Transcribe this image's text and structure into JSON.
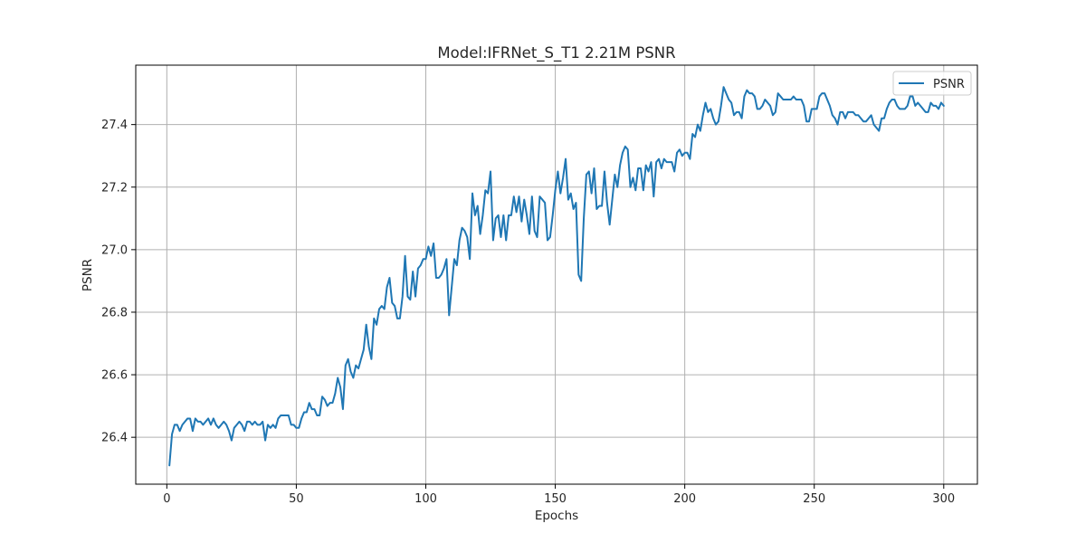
{
  "chart_data": {
    "type": "line",
    "title": "Model:IFRNet_S_T1 2.21M PSNR",
    "xlabel": "Epochs",
    "ylabel": "PSNR",
    "xlim": [
      -12,
      313
    ],
    "ylim": [
      26.25,
      27.59
    ],
    "xticks": [
      0,
      50,
      100,
      150,
      200,
      250,
      300
    ],
    "yticks": [
      26.4,
      26.6,
      26.8,
      27.0,
      27.2,
      27.4
    ],
    "xtick_labels": [
      "0",
      "50",
      "100",
      "150",
      "200",
      "250",
      "300"
    ],
    "ytick_labels": [
      "26.4",
      "26.6",
      "26.8",
      "27.0",
      "27.2",
      "27.4"
    ],
    "grid": true,
    "legend_position": "upper right",
    "colors": {
      "series": "#1f77b4",
      "grid": "#b0b0b0",
      "frame": "#000000"
    },
    "series": [
      {
        "name": "PSNR",
        "x_start": 1,
        "x_step": 1,
        "values": [
          26.31,
          26.41,
          26.44,
          26.44,
          26.42,
          26.44,
          26.45,
          26.46,
          26.46,
          26.42,
          26.46,
          26.45,
          26.45,
          26.44,
          26.45,
          26.46,
          26.44,
          26.46,
          26.44,
          26.43,
          26.44,
          26.45,
          26.44,
          26.42,
          26.39,
          26.43,
          26.44,
          26.45,
          26.44,
          26.42,
          26.45,
          26.45,
          26.44,
          26.45,
          26.44,
          26.44,
          26.45,
          26.39,
          26.44,
          26.43,
          26.44,
          26.43,
          26.46,
          26.47,
          26.47,
          26.47,
          26.47,
          26.44,
          26.44,
          26.43,
          26.43,
          26.46,
          26.48,
          26.48,
          26.51,
          26.49,
          26.49,
          26.47,
          26.47,
          26.53,
          26.52,
          26.5,
          26.51,
          26.51,
          26.54,
          26.59,
          26.56,
          26.49,
          26.63,
          26.65,
          26.61,
          26.59,
          26.63,
          26.62,
          26.65,
          26.68,
          26.76,
          26.69,
          26.65,
          26.78,
          26.76,
          26.81,
          26.82,
          26.81,
          26.88,
          26.91,
          26.83,
          26.82,
          26.78,
          26.78,
          26.85,
          26.98,
          26.85,
          26.84,
          26.93,
          26.85,
          26.94,
          26.95,
          26.97,
          26.97,
          27.01,
          26.98,
          27.02,
          26.91,
          26.91,
          26.92,
          26.94,
          26.97,
          26.79,
          26.88,
          26.97,
          26.95,
          27.03,
          27.07,
          27.06,
          27.04,
          26.97,
          27.18,
          27.11,
          27.14,
          27.05,
          27.11,
          27.19,
          27.18,
          27.25,
          27.03,
          27.1,
          27.11,
          27.04,
          27.11,
          27.03,
          27.11,
          27.11,
          27.17,
          27.12,
          27.17,
          27.09,
          27.16,
          27.11,
          27.05,
          27.17,
          27.06,
          27.04,
          27.17,
          27.16,
          27.15,
          27.03,
          27.04,
          27.11,
          27.19,
          27.25,
          27.18,
          27.23,
          27.29,
          27.16,
          27.18,
          27.13,
          27.15,
          26.92,
          26.9,
          27.1,
          27.24,
          27.25,
          27.18,
          27.26,
          27.13,
          27.14,
          27.14,
          27.25,
          27.15,
          27.08,
          27.16,
          27.24,
          27.2,
          27.27,
          27.31,
          27.33,
          27.32,
          27.2,
          27.23,
          27.19,
          27.26,
          27.26,
          27.19,
          27.27,
          27.25,
          27.28,
          27.17,
          27.28,
          27.29,
          27.26,
          27.29,
          27.28,
          27.28,
          27.28,
          27.25,
          27.31,
          27.32,
          27.3,
          27.31,
          27.31,
          27.29,
          27.37,
          27.36,
          27.4,
          27.38,
          27.43,
          27.47,
          27.44,
          27.45,
          27.42,
          27.4,
          27.41,
          27.46,
          27.52,
          27.5,
          27.48,
          27.47,
          27.43,
          27.44,
          27.44,
          27.42,
          27.49,
          27.51,
          27.5,
          27.5,
          27.49,
          27.45,
          27.45,
          27.46,
          27.48,
          27.47,
          27.46,
          27.43,
          27.44,
          27.5,
          27.49,
          27.48,
          27.48,
          27.48,
          27.48,
          27.49,
          27.48,
          27.48,
          27.48,
          27.46,
          27.41,
          27.41,
          27.45,
          27.45,
          27.45,
          27.49,
          27.5,
          27.5,
          27.48,
          27.46,
          27.43,
          27.42,
          27.4,
          27.44,
          27.44,
          27.42,
          27.44,
          27.44,
          27.44,
          27.43,
          27.43,
          27.42,
          27.41,
          27.41,
          27.42,
          27.43,
          27.4,
          27.39,
          27.38,
          27.42,
          27.42,
          27.45,
          27.47,
          27.48,
          27.48,
          27.46,
          27.45,
          27.45,
          27.45,
          27.46,
          27.49,
          27.49,
          27.46,
          27.47,
          27.46,
          27.45,
          27.44,
          27.44,
          27.47,
          27.46,
          27.46,
          27.45,
          27.47,
          27.46
        ]
      }
    ]
  }
}
